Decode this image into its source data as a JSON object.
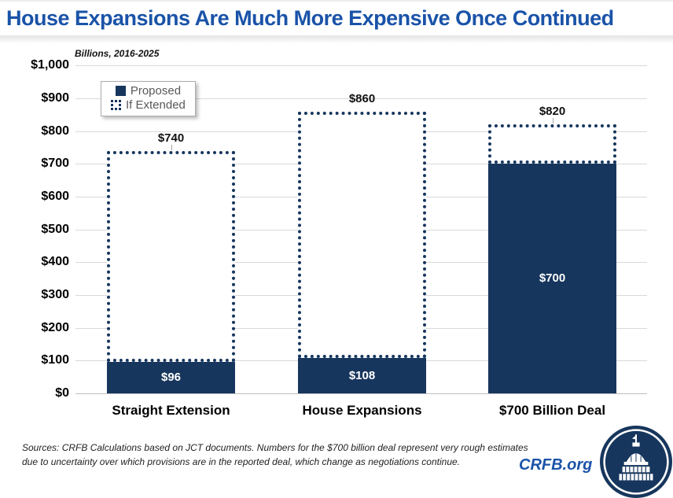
{
  "colors": {
    "navy": "#17365D",
    "title_blue": "#1A53A8",
    "grid": "#D9D9D9",
    "legend_text": "#595959"
  },
  "chart_data": {
    "type": "bar",
    "title": "House Expansions Are Much More Expensive Once Continued",
    "subtitle": "Billions, 2016-2025",
    "categories": [
      "Straight Extension",
      "House Expansions",
      "$700 Billion Deal"
    ],
    "series": [
      {
        "name": "Proposed",
        "style": "solid",
        "values": [
          96,
          108,
          700
        ],
        "labels": [
          "$96",
          "$108",
          "$700"
        ]
      },
      {
        "name": "If Extended",
        "style": "dotted-outline",
        "values": [
          740,
          860,
          820
        ],
        "labels": [
          "$740",
          "$860",
          "$820"
        ]
      }
    ],
    "ylim": [
      0,
      1000
    ],
    "ytick_step": 100,
    "ytick_labels": [
      "$0",
      "$100",
      "$200",
      "$300",
      "$400",
      "$500",
      "$600",
      "$700",
      "$800",
      "$900",
      "$1,000"
    ],
    "grid": true,
    "legend": {
      "position": "inside-top-left",
      "entries": [
        "Proposed",
        "If Extended"
      ]
    }
  },
  "footer": {
    "source_lines": [
      "Sources: CRFB Calculations based on JCT documents. Numbers for the $700 billion deal represent very rough estimates",
      "due to uncertainty over which provisions are in the reported deal, which change as negotiations continue."
    ],
    "site": "CRFB.org",
    "logo": "crfb-capitol-logo"
  }
}
